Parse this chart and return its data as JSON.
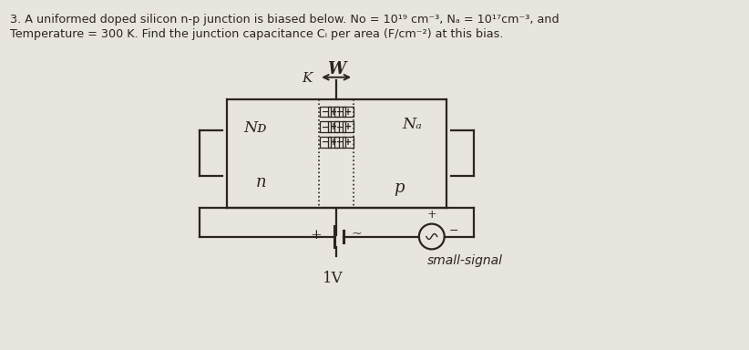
{
  "fig_bg": "#e8e4de",
  "font_color": "#2a2520",
  "box_color": "#2a2520",
  "title_line1": "3. A uniformed doped silicon n-p junction is biased below. No = 10¹⁹ cm⁻³, Nₐ = 10¹⁷cm⁻³, and",
  "title_line2": "Temperature = 300 K. Find the junction capacitance Cᵢ per area (F/cm⁻²) at this bias.",
  "text_ND": "Nᴅ",
  "text_NA": "Nₐ",
  "text_n": "n",
  "text_p": "p",
  "text_W": "W",
  "text_K": "K",
  "text_1V": "1V",
  "text_small_signal": "small-signal"
}
